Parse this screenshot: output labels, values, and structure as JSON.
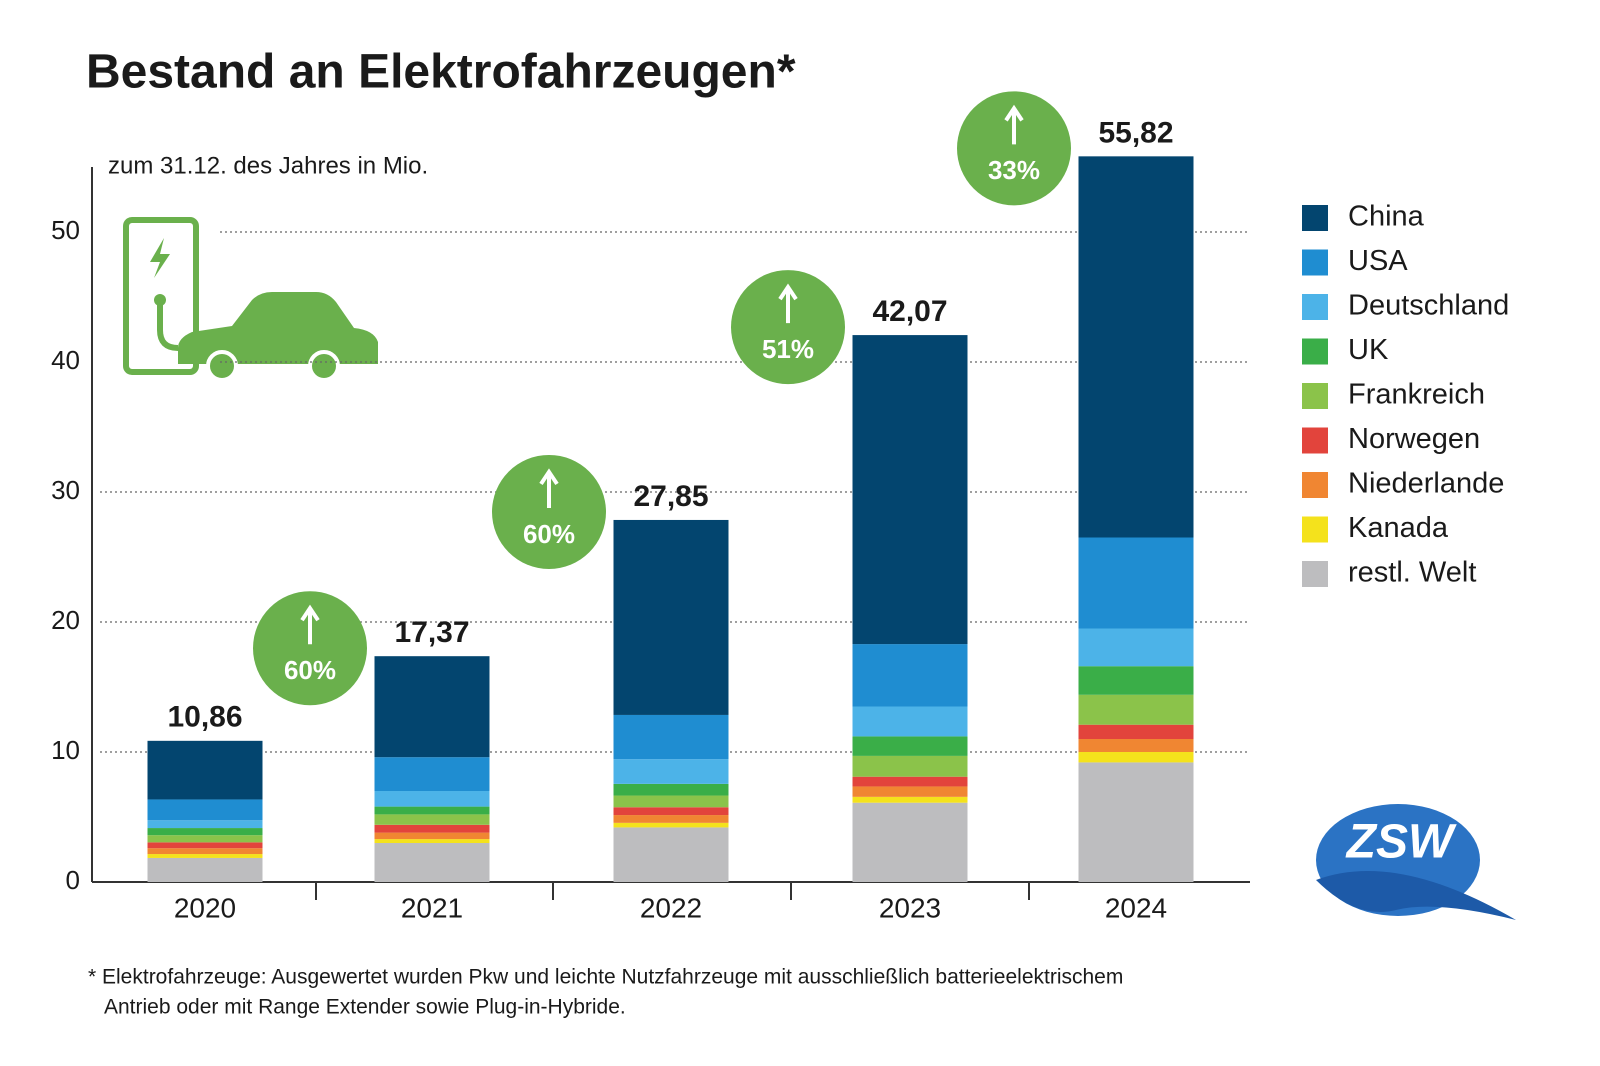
{
  "chart_data": {
    "type": "stacked_bar",
    "title": "Bestand an Elektrofahrzeugen*",
    "subtitle": "zum 31.12. des Jahres in Mio.",
    "categories": [
      "2020",
      "2021",
      "2022",
      "2023",
      "2024"
    ],
    "series": [
      {
        "name": "restl. Welt",
        "color": "#bdbdbf",
        "values": [
          1.85,
          3.0,
          4.2,
          6.1,
          9.2
        ]
      },
      {
        "name": "Kanada",
        "color": "#f4e21c",
        "values": [
          0.3,
          0.3,
          0.35,
          0.45,
          0.8
        ]
      },
      {
        "name": "Niederlande",
        "color": "#f08632",
        "values": [
          0.45,
          0.5,
          0.6,
          0.8,
          1.0
        ]
      },
      {
        "name": "Norwegen",
        "color": "#e2443c",
        "values": [
          0.45,
          0.6,
          0.6,
          0.75,
          1.1
        ]
      },
      {
        "name": "Frankreich",
        "color": "#8bc34a",
        "values": [
          0.55,
          0.8,
          0.9,
          1.6,
          2.3
        ]
      },
      {
        "name": "UK",
        "color": "#3aae48",
        "values": [
          0.55,
          0.6,
          0.9,
          1.5,
          2.2
        ]
      },
      {
        "name": "Deutschland",
        "color": "#4cb3e8",
        "values": [
          0.6,
          1.2,
          1.9,
          2.3,
          2.9
        ]
      },
      {
        "name": "USA",
        "color": "#1f8dd1",
        "values": [
          1.6,
          2.6,
          3.4,
          4.8,
          7.0
        ]
      },
      {
        "name": "China",
        "color": "#03456f",
        "values": [
          4.51,
          7.77,
          15.0,
          23.77,
          29.32
        ]
      }
    ],
    "totals": [
      10.86,
      17.37,
      27.85,
      42.07,
      55.82
    ],
    "total_labels": [
      "10,86",
      "17,37",
      "27,85",
      "42,07",
      "55,82"
    ],
    "growth": [
      {
        "value": 60,
        "label": "60%"
      },
      {
        "value": 60,
        "label": "60%"
      },
      {
        "value": 51,
        "label": "51%"
      },
      {
        "value": 33,
        "label": "33%"
      }
    ],
    "ylim": [
      0,
      55
    ],
    "yticks": [
      0,
      10,
      20,
      30,
      40,
      50
    ],
    "grid": true,
    "footnote": [
      "* Elektrofahrzeuge: Ausgewertet wurden Pkw und leichte Nutzfahrzeuge mit ausschließlich batterieelektrischem",
      "Antrieb oder mit Range Extender sowie Plug-in-Hybride."
    ],
    "logo": "ZSW"
  }
}
